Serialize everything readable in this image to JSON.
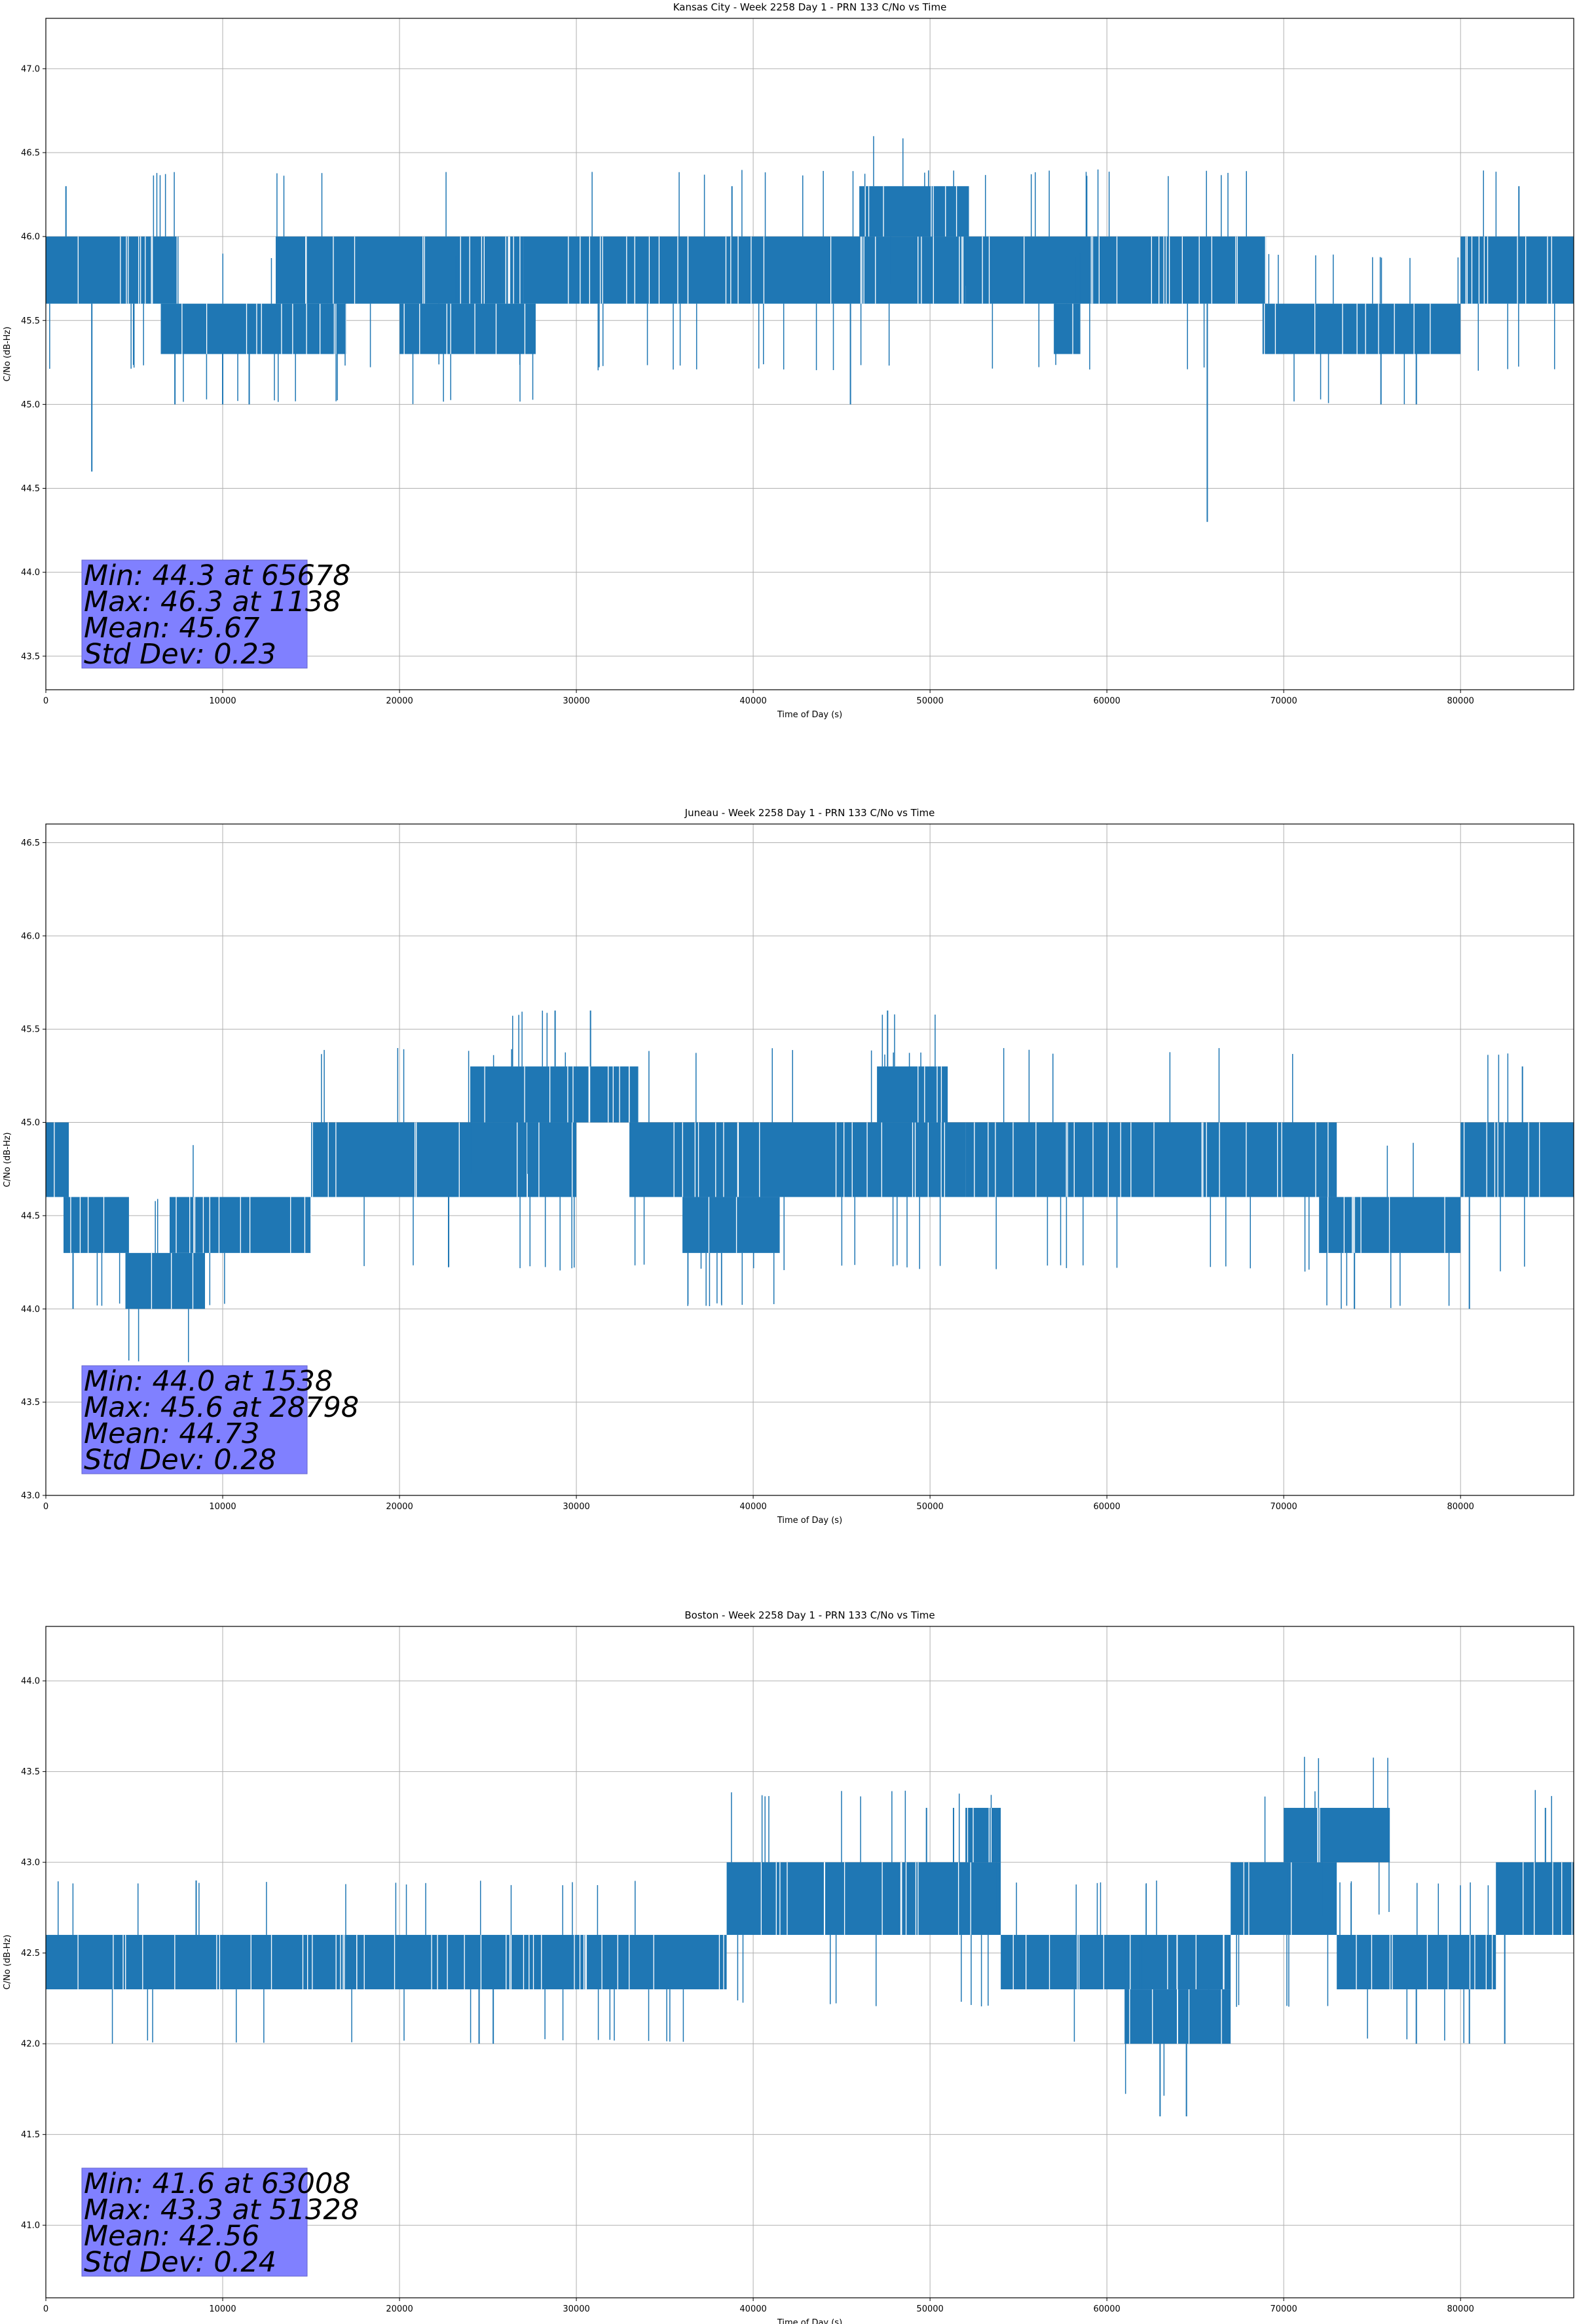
{
  "chart_data": [
    {
      "type": "line",
      "title": "Kansas City - Week 2258 Day 1 - PRN 133 C/No vs Time",
      "xlabel": "Time of Day (s)",
      "ylabel": "C/No (dB-Hz)",
      "xlim": [
        0,
        86400
      ],
      "ylim": [
        43.3,
        47.3
      ],
      "xticks": [
        0,
        10000,
        20000,
        30000,
        40000,
        50000,
        60000,
        70000,
        80000
      ],
      "yticks": [
        43.5,
        44.0,
        44.5,
        45.0,
        45.5,
        46.0,
        46.5,
        47.0
      ],
      "grid": true,
      "color": "#1f77b4",
      "stats": [
        "Min: 44.3 at 65678",
        "Max: 46.3 at 1138",
        "Mean: 45.67",
        "Std Dev: 0.23"
      ],
      "bands": [
        {
          "x": [
            0,
            7500
          ],
          "y": [
            45.6,
            46.0
          ]
        },
        {
          "x": [
            6500,
            17000
          ],
          "y": [
            45.3,
            45.6
          ]
        },
        {
          "x": [
            13000,
            27000
          ],
          "y": [
            45.6,
            46.0
          ]
        },
        {
          "x": [
            20000,
            27700
          ],
          "y": [
            45.3,
            45.6
          ]
        },
        {
          "x": [
            27000,
            52000
          ],
          "y": [
            45.6,
            46.0
          ]
        },
        {
          "x": [
            46000,
            52200
          ],
          "y": [
            46.0,
            46.3
          ]
        },
        {
          "x": [
            52000,
            69000
          ],
          "y": [
            45.6,
            46.0
          ]
        },
        {
          "x": [
            57000,
            58500
          ],
          "y": [
            45.3,
            45.6
          ]
        },
        {
          "x": [
            68800,
            80000
          ],
          "y": [
            45.3,
            45.6
          ]
        },
        {
          "x": [
            80000,
            86400
          ],
          "y": [
            45.6,
            46.0
          ]
        }
      ],
      "spikes": [
        {
          "x": 1138,
          "y": 46.3
        },
        {
          "x": 2600,
          "y": 44.6
        },
        {
          "x": 7300,
          "y": 45.0
        },
        {
          "x": 10000,
          "y": 45.0
        },
        {
          "x": 11500,
          "y": 45.0
        },
        {
          "x": 38800,
          "y": 46.3
        },
        {
          "x": 45500,
          "y": 45.0
        },
        {
          "x": 65678,
          "y": 44.3
        },
        {
          "x": 75500,
          "y": 45.0
        },
        {
          "x": 77500,
          "y": 45.0
        },
        {
          "x": 83300,
          "y": 46.3
        }
      ]
    },
    {
      "type": "line",
      "title": "Juneau - Week 2258 Day 1 - PRN 133 C/No vs Time",
      "xlabel": "Time of Day (s)",
      "ylabel": "C/No (dB-Hz)",
      "xlim": [
        0,
        86400
      ],
      "ylim": [
        43.0,
        46.6
      ],
      "xticks": [
        0,
        10000,
        20000,
        30000,
        40000,
        50000,
        60000,
        70000,
        80000
      ],
      "yticks": [
        43.0,
        43.5,
        44.0,
        44.5,
        45.0,
        45.5,
        46.0,
        46.5
      ],
      "grid": true,
      "color": "#1f77b4",
      "stats": [
        "Min: 44.0 at 1538",
        "Max: 45.6 at 28798",
        "Mean: 44.73",
        "Std Dev: 0.28"
      ],
      "bands": [
        {
          "x": [
            0,
            1300
          ],
          "y": [
            44.6,
            45.0
          ]
        },
        {
          "x": [
            1000,
            4700
          ],
          "y": [
            44.3,
            44.6
          ]
        },
        {
          "x": [
            4500,
            9000
          ],
          "y": [
            44.0,
            44.3
          ]
        },
        {
          "x": [
            7000,
            15000
          ],
          "y": [
            44.3,
            44.6
          ]
        },
        {
          "x": [
            15000,
            30000
          ],
          "y": [
            44.6,
            45.0
          ]
        },
        {
          "x": [
            24000,
            33500
          ],
          "y": [
            45.0,
            45.3
          ]
        },
        {
          "x": [
            33000,
            52000
          ],
          "y": [
            44.6,
            45.0
          ]
        },
        {
          "x": [
            36000,
            41500
          ],
          "y": [
            44.3,
            44.6
          ]
        },
        {
          "x": [
            47000,
            51000
          ],
          "y": [
            45.0,
            45.3
          ]
        },
        {
          "x": [
            52000,
            73000
          ],
          "y": [
            44.6,
            45.0
          ]
        },
        {
          "x": [
            72000,
            80000
          ],
          "y": [
            44.3,
            44.6
          ]
        },
        {
          "x": [
            80000,
            86400
          ],
          "y": [
            44.6,
            45.0
          ]
        }
      ],
      "spikes": [
        {
          "x": 1538,
          "y": 44.0
        },
        {
          "x": 28798,
          "y": 45.6
        },
        {
          "x": 30800,
          "y": 45.6
        },
        {
          "x": 47600,
          "y": 45.6
        },
        {
          "x": 74000,
          "y": 44.0
        },
        {
          "x": 80500,
          "y": 44.0
        },
        {
          "x": 83500,
          "y": 45.3
        }
      ]
    },
    {
      "type": "line",
      "title": "Boston - Week 2258 Day 1 - PRN 133 C/No vs Time",
      "xlabel": "Time of Day (s)",
      "ylabel": "C/No (dB-Hz)",
      "xlim": [
        0,
        86400
      ],
      "ylim": [
        40.6,
        44.3
      ],
      "xticks": [
        0,
        10000,
        20000,
        30000,
        40000,
        50000,
        60000,
        70000,
        80000
      ],
      "yticks": [
        41.0,
        41.5,
        42.0,
        42.5,
        43.0,
        43.5,
        44.0
      ],
      "grid": true,
      "color": "#1f77b4",
      "stats": [
        "Min: 41.6 at 63008",
        "Max: 43.3 at 51328",
        "Mean: 42.56",
        "Std Dev: 0.24"
      ],
      "bands": [
        {
          "x": [
            0,
            38500
          ],
          "y": [
            42.3,
            42.6
          ]
        },
        {
          "x": [
            38500,
            54000
          ],
          "y": [
            42.6,
            43.0
          ]
        },
        {
          "x": [
            52000,
            54000
          ],
          "y": [
            43.0,
            43.3
          ]
        },
        {
          "x": [
            54000,
            67000
          ],
          "y": [
            42.3,
            42.6
          ]
        },
        {
          "x": [
            61000,
            67000
          ],
          "y": [
            42.0,
            42.3
          ]
        },
        {
          "x": [
            67000,
            73000
          ],
          "y": [
            42.6,
            43.0
          ]
        },
        {
          "x": [
            70000,
            76000
          ],
          "y": [
            43.0,
            43.3
          ]
        },
        {
          "x": [
            73000,
            82000
          ],
          "y": [
            42.3,
            42.6
          ]
        },
        {
          "x": [
            82000,
            86400
          ],
          "y": [
            42.6,
            43.0
          ]
        }
      ],
      "spikes": [
        {
          "x": 63008,
          "y": 41.6
        },
        {
          "x": 64500,
          "y": 41.6
        },
        {
          "x": 51328,
          "y": 43.3
        },
        {
          "x": 49800,
          "y": 43.3
        },
        {
          "x": 8500,
          "y": 42.9
        },
        {
          "x": 24500,
          "y": 42.0
        },
        {
          "x": 25300,
          "y": 42.0
        },
        {
          "x": 77500,
          "y": 42.0
        },
        {
          "x": 80500,
          "y": 42.0
        },
        {
          "x": 82500,
          "y": 42.0
        },
        {
          "x": 84800,
          "y": 43.3
        }
      ]
    }
  ]
}
